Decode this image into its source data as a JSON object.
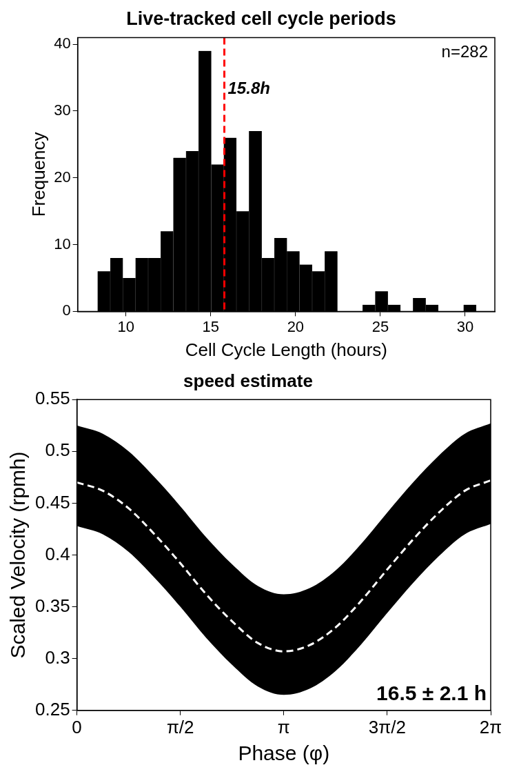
{
  "chart_data": [
    {
      "type": "histogram",
      "title": "Live-tracked cell cycle periods",
      "xlabel": "Cell Cycle Length (hours)",
      "ylabel": "Frequency",
      "color": "#000000",
      "bins": [
        8.33,
        9.07,
        9.82,
        10.56,
        11.31,
        12.05,
        12.79,
        13.54,
        14.28,
        15.03,
        15.77,
        16.51,
        17.26,
        18.0,
        18.75,
        19.49,
        20.23,
        20.98,
        21.72,
        22.47,
        23.21,
        23.95,
        24.7,
        25.44,
        26.19,
        26.93,
        27.67,
        28.42,
        29.16,
        29.91,
        30.65
      ],
      "values": [
        6,
        8,
        5,
        8,
        8,
        12,
        23,
        24,
        39,
        22,
        26,
        15,
        27,
        8,
        11,
        9,
        7,
        6,
        9,
        0,
        0,
        1,
        3,
        1,
        0,
        2,
        1,
        0,
        0,
        1
      ],
      "xlim": [
        7.15,
        31.75
      ],
      "xticks": [
        10,
        15,
        20,
        25,
        30
      ],
      "ylim": [
        0,
        41
      ],
      "yticks": [
        0,
        10,
        20,
        30,
        40
      ],
      "ref_lines": [
        {
          "axis": "x",
          "value": 15.8,
          "label": "15.8h",
          "color": "#ff0000",
          "line_style": "dashed"
        }
      ],
      "annotations": [
        "n=282"
      ]
    },
    {
      "type": "line",
      "title": "speed estimate",
      "xlabel": "Phase (φ)",
      "ylabel": "Scaled Velocity (rpmh)",
      "line_style": "dashed",
      "xlim": [
        0,
        6.2832
      ],
      "xticks": [
        {
          "value": 0,
          "label": "0"
        },
        {
          "value": 1.5708,
          "label": "π/2"
        },
        {
          "value": 3.1416,
          "label": "π"
        },
        {
          "value": 4.7124,
          "label": "3π/2"
        },
        {
          "value": 6.2832,
          "label": "2π"
        }
      ],
      "ylim": [
        0.25,
        0.55
      ],
      "yticks": [
        0.25,
        0.3,
        0.35,
        0.4,
        0.45,
        0.5,
        0.55
      ],
      "series": [
        {
          "color": "#ffffff",
          "x": [
            0,
            0.3927,
            0.7854,
            1.1781,
            1.5708,
            1.9635,
            2.3562,
            2.7489,
            3.1416,
            3.5343,
            3.927,
            4.3197,
            4.7124,
            5.1051,
            5.4978,
            5.8905,
            6.2832
          ],
          "values": [
            0.47,
            0.462,
            0.445,
            0.42,
            0.392,
            0.362,
            0.336,
            0.315,
            0.307,
            0.313,
            0.33,
            0.356,
            0.386,
            0.415,
            0.441,
            0.462,
            0.472
          ],
          "upper": [
            0.525,
            0.517,
            0.5,
            0.475,
            0.447,
            0.417,
            0.391,
            0.37,
            0.362,
            0.368,
            0.385,
            0.411,
            0.441,
            0.47,
            0.496,
            0.517,
            0.527
          ],
          "lower": [
            0.428,
            0.42,
            0.403,
            0.378,
            0.35,
            0.32,
            0.294,
            0.273,
            0.265,
            0.271,
            0.288,
            0.314,
            0.344,
            0.373,
            0.399,
            0.42,
            0.43
          ]
        }
      ],
      "annotations": [
        "16.5 ± 2.1 h"
      ]
    }
  ]
}
